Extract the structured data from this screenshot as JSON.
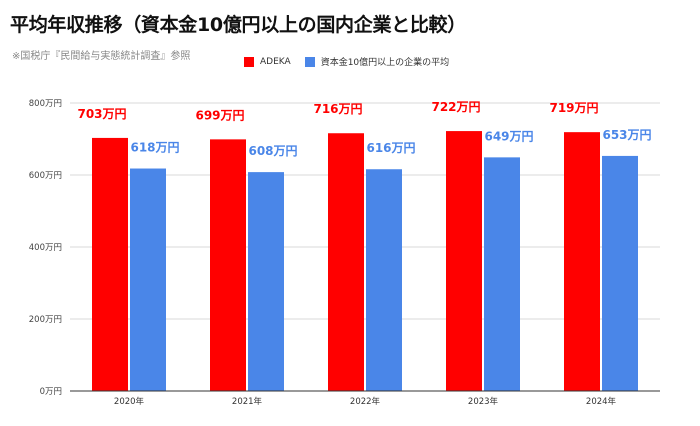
{
  "title": "平均年収推移（資本金10億円以上の国内企業と比較）",
  "source": "※国税庁『民間給与実態統計調査』参照",
  "colors": {
    "adeka": "#ff0000",
    "average": "#4a86e8",
    "grid": "#d9d9d9",
    "axis": "#333333"
  },
  "chart_data": {
    "type": "bar",
    "categories": [
      "2020年",
      "2021年",
      "2022年",
      "2023年",
      "2024年"
    ],
    "series": [
      {
        "name": "ADEKA",
        "values": [
          703,
          699,
          716,
          722,
          719
        ],
        "labels": [
          "703万円",
          "699万円",
          "716万円",
          "722万円",
          "719万円"
        ]
      },
      {
        "name": "資本金10億円以上の企業の平均",
        "values": [
          618,
          608,
          616,
          649,
          653
        ],
        "labels": [
          "618万円",
          "608万円",
          "616万円",
          "649万円",
          "653万円"
        ]
      }
    ],
    "yticks": [
      {
        "value": 0,
        "label": "0万円"
      },
      {
        "value": 200,
        "label": "200万円"
      },
      {
        "value": 400,
        "label": "400万円"
      },
      {
        "value": 600,
        "label": "600万円"
      },
      {
        "value": 800,
        "label": "800万円"
      }
    ],
    "ylim": [
      0,
      800
    ],
    "grid": true,
    "legend_position": "top"
  }
}
